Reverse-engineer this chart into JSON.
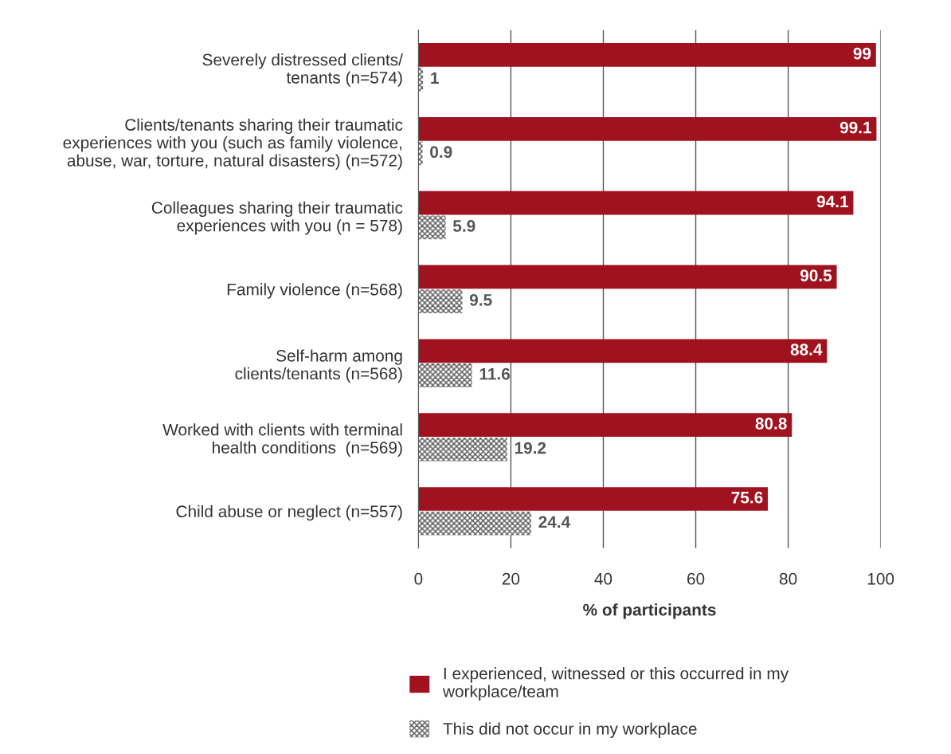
{
  "chart_data": {
    "type": "bar",
    "orientation": "horizontal",
    "xlabel": "% of participants",
    "categories": [
      "Severely distressed clients/\ntenants (n=574)",
      "Clients/tenants sharing their traumatic\nexperiences with you (such as family violence,\nabuse, war, torture, natural disasters) (n=572)",
      "Colleagues sharing their traumatic\nexperiences with you (n = 578)",
      "Family violence (n=568)",
      "Self-harm among\nclients/tenants (n=568)",
      "Worked with clients with terminal\nhealth conditions  (n=569)",
      "Child abuse or neglect (n=557)"
    ],
    "series": [
      {
        "name": "I experienced, witnessed or this occurred in my\nworkplace/team",
        "color": "#a0121e",
        "values": [
          99,
          99.1,
          94.1,
          90.5,
          88.4,
          80.8,
          75.6
        ]
      },
      {
        "name": "This did not occur in my workplace",
        "color": "#555555",
        "values": [
          1,
          0.9,
          5.9,
          9.5,
          11.6,
          19.2,
          24.4
        ]
      }
    ],
    "xlim": [
      0,
      100
    ],
    "xticks": [
      0,
      20,
      40,
      60,
      80,
      100
    ],
    "grid": "x",
    "legend": "bottom",
    "data_labels": true
  }
}
